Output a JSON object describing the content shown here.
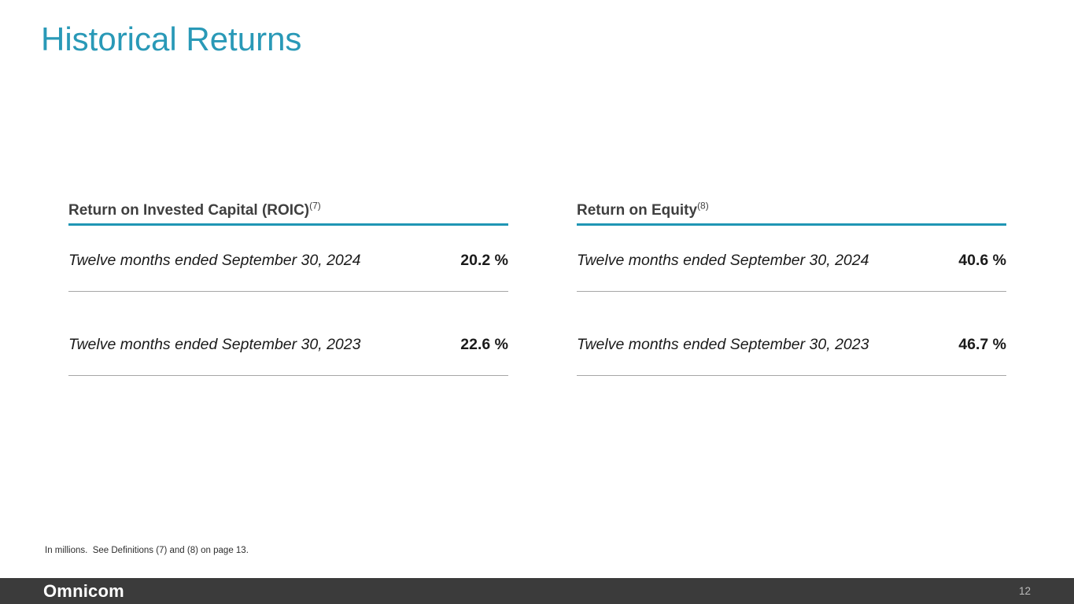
{
  "slide": {
    "title": "Historical Returns",
    "footnote": "In millions.  See Definitions (7) and (8) on page 13.",
    "logo_text": "Omnicom",
    "page_number": "12"
  },
  "colors": {
    "accent_teal": "#1f96b4",
    "title_teal": "#2999b7",
    "footer_bar": "#3b3b3b",
    "row_separator": "#a6a6a6",
    "header_text": "#3f3f3f"
  },
  "tables": [
    {
      "title": "Return on Invested Capital (ROIC)",
      "superscript": "(7)",
      "rows": [
        {
          "label": "Twelve months ended September 30, 2024",
          "value": "20.2 %"
        },
        {
          "label": "Twelve months ended September 30, 2023",
          "value": "22.6 %"
        }
      ]
    },
    {
      "title": "Return on Equity",
      "superscript": "(8)",
      "rows": [
        {
          "label": "Twelve months ended September 30, 2024",
          "value": "40.6 %"
        },
        {
          "label": "Twelve months ended September 30, 2023",
          "value": "46.7 %"
        }
      ]
    }
  ]
}
